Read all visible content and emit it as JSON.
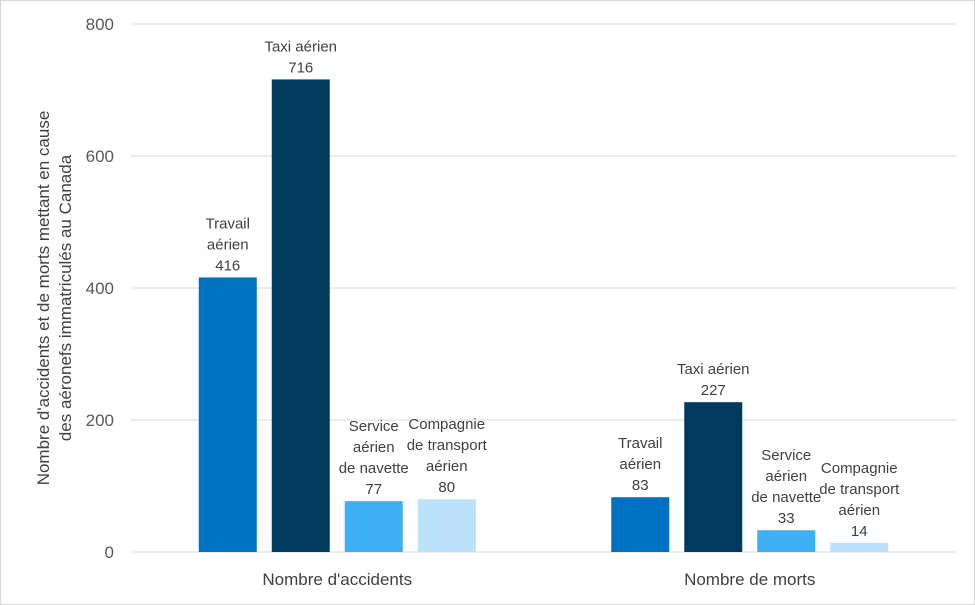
{
  "chart_data": {
    "type": "bar",
    "title": "",
    "xlabel": "",
    "ylabel": [
      "Nombre d'accidents et de morts mettant en cause",
      "des aéronefs immatriculés au Canada"
    ],
    "ylim": [
      0,
      800
    ],
    "yticks": [
      0,
      200,
      400,
      600,
      800
    ],
    "grid": true,
    "categories": [
      "Nombre d'accidents",
      "Nombre de morts"
    ],
    "series": [
      {
        "name": "Travail aérien",
        "color": "#0070c0",
        "values": [
          416,
          83
        ],
        "labels": [
          [
            "Travail",
            "aérien"
          ],
          [
            "Travail",
            "aérien"
          ]
        ]
      },
      {
        "name": "Taxi aérien",
        "color": "#003a5d",
        "values": [
          716,
          227
        ],
        "labels": [
          [
            "Taxi aérien"
          ],
          [
            "Taxi aérien"
          ]
        ]
      },
      {
        "name": "Service aérien de navette",
        "color": "#3eaff2",
        "values": [
          77,
          33
        ],
        "labels": [
          [
            "Service",
            "aérien",
            "de navette"
          ],
          [
            "Service",
            "aérien",
            "de navette"
          ]
        ]
      },
      {
        "name": "Compagnie de transport aérien",
        "color": "#bde1fa",
        "values": [
          80,
          14
        ],
        "labels": [
          [
            "Compagnie",
            "de transport",
            "aérien"
          ],
          [
            "Compagnie",
            "de transport",
            "aérien"
          ]
        ]
      }
    ]
  }
}
